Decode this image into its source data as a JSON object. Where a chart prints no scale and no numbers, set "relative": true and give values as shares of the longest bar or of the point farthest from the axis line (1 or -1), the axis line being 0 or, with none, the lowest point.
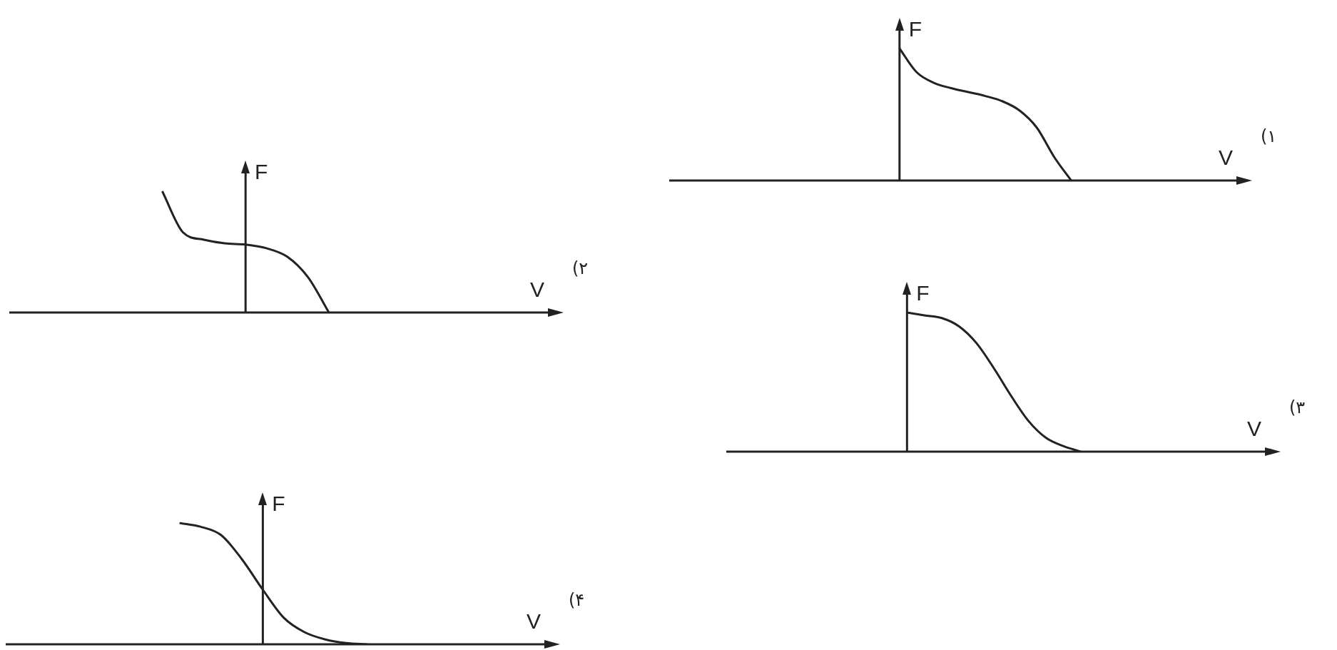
{
  "chart_data": [
    {
      "type": "line",
      "xlabel": "V",
      "ylabel": "F",
      "relative": true,
      "marker": "none",
      "annotations": [
        "(۱"
      ],
      "categories": [
        null,
        null,
        null,
        null,
        null,
        null,
        null,
        null,
        null,
        null,
        null,
        null,
        null,
        null,
        null,
        null,
        null,
        null,
        null,
        null,
        null,
        null,
        null,
        null,
        null,
        null,
        null,
        null,
        null,
        null,
        null,
        null,
        null
      ],
      "series": [
        {
          "color": "#222222",
          "values": [
            null,
            null,
            null,
            null,
            null,
            null,
            null,
            null,
            null,
            null,
            null,
            null,
            null,
            1,
            0.82,
            0.74,
            0.7,
            0.67,
            0.64,
            0.6,
            0.53,
            0.4,
            0.18,
            0,
            null,
            null,
            null,
            null,
            null,
            null,
            null,
            null,
            null
          ]
        }
      ]
    },
    {
      "type": "line",
      "xlabel": "V",
      "ylabel": "F",
      "relative": true,
      "marker": "none",
      "annotations": [
        "(۲"
      ],
      "categories": [
        null,
        null,
        null,
        null,
        null,
        null,
        null,
        null,
        null,
        null,
        null,
        null,
        null,
        null,
        null,
        null,
        null,
        null,
        null,
        null,
        null,
        null,
        null,
        null,
        null,
        null
      ],
      "series": [
        {
          "color": "#222222",
          "values": [
            null,
            null,
            null,
            null,
            null,
            null,
            null,
            1,
            0.66,
            0.6,
            0.57,
            0.56,
            0.53,
            0.46,
            0.29,
            0,
            null,
            null,
            null,
            null,
            null,
            null,
            null,
            null,
            null,
            null
          ]
        }
      ]
    },
    {
      "type": "line",
      "xlabel": "V",
      "ylabel": "F",
      "relative": true,
      "marker": "none",
      "annotations": [
        "(۳"
      ],
      "categories": [
        null,
        null,
        null,
        null,
        null,
        null,
        null,
        null,
        null,
        null,
        null,
        null,
        null,
        null,
        null,
        null,
        null,
        null,
        null,
        null,
        null,
        null,
        null,
        null,
        null,
        null,
        null,
        null,
        null,
        null,
        null
      ],
      "series": [
        {
          "color": "#222222",
          "values": [
            null,
            null,
            null,
            null,
            null,
            null,
            null,
            null,
            null,
            null,
            1,
            0.98,
            0.96,
            0.9,
            0.78,
            0.6,
            0.4,
            0.22,
            0.1,
            0.04,
            0,
            null,
            null,
            null,
            null,
            null,
            null,
            null,
            null,
            null,
            null
          ]
        }
      ]
    },
    {
      "type": "line",
      "xlabel": "V",
      "ylabel": "F",
      "relative": true,
      "marker": "none",
      "annotations": [
        "(۴"
      ],
      "categories": [
        null,
        null,
        null,
        null,
        null,
        null,
        null,
        null,
        null,
        null,
        null,
        null,
        null,
        null,
        null,
        null,
        null,
        null,
        null,
        null,
        null,
        null,
        null,
        null,
        null,
        null
      ],
      "series": [
        {
          "color": "#222222",
          "values": [
            null,
            null,
            null,
            null,
            null,
            null,
            null,
            null,
            1,
            0.97,
            0.9,
            0.7,
            0.45,
            0.22,
            0.1,
            0.04,
            0.01,
            0,
            null,
            null,
            null,
            null,
            null,
            null,
            null,
            null
          ]
        }
      ]
    }
  ]
}
